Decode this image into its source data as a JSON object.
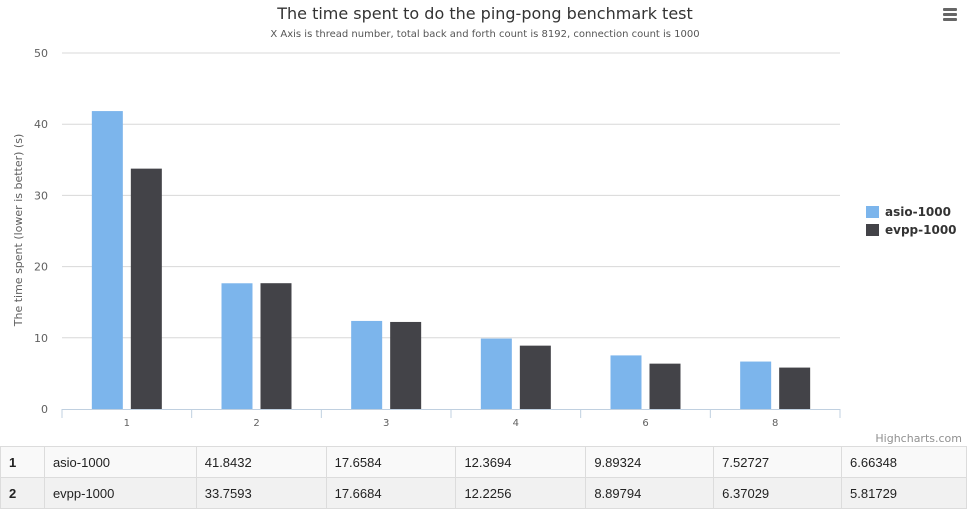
{
  "chart_data": {
    "type": "bar",
    "title": "The time spent to do the ping-pong benchmark test",
    "subtitle": "X Axis is thread number, total back and forth count is 8192, connection count is 1000",
    "ylabel": "The time spent (lower is better) (s)",
    "xlabel": "",
    "categories": [
      "1",
      "2",
      "3",
      "4",
      "6",
      "8"
    ],
    "ylim": [
      0,
      50
    ],
    "yticks": [
      "0",
      "10",
      "20",
      "30",
      "40",
      "50"
    ],
    "grid": true,
    "legend_position": "right",
    "series": [
      {
        "name": "asio-1000",
        "color": "#7cb5ec",
        "values": [
          41.8432,
          17.6584,
          12.3694,
          9.89324,
          7.52727,
          6.66348
        ]
      },
      {
        "name": "evpp-1000",
        "color": "#434348",
        "values": [
          33.7593,
          17.6684,
          12.2256,
          8.89794,
          6.37029,
          5.81729
        ]
      }
    ],
    "credits": "Highcharts.com"
  },
  "menu": {
    "icon": "hamburger-menu-icon"
  },
  "table": {
    "rows": [
      {
        "index": "1",
        "name": "asio-1000",
        "cells": [
          "41.8432",
          "17.6584",
          "12.3694",
          "9.89324",
          "7.52727",
          "6.66348"
        ]
      },
      {
        "index": "2",
        "name": "evpp-1000",
        "cells": [
          "33.7593",
          "17.6684",
          "12.2256",
          "8.89794",
          "6.37029",
          "5.81729"
        ]
      }
    ]
  }
}
